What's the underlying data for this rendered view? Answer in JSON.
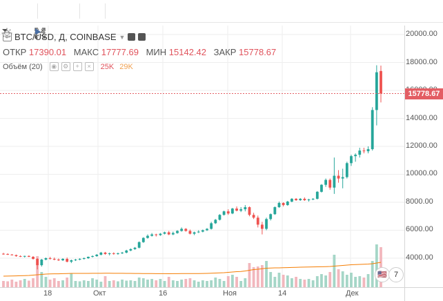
{
  "toolbar": {
    "icons": [
      "bulb-icon",
      "chevron-down-icon",
      "undo-icon",
      "redo-icon",
      "fullscreen-icon",
      "play-icon"
    ]
  },
  "legend": {
    "symbol": "BTC/USD, Д, COINBASE",
    "ohlc": [
      {
        "label": "ОТКР",
        "value": "17390.01"
      },
      {
        "label": "МАКС",
        "value": "17777.69"
      },
      {
        "label": "МИН",
        "value": "15142.42"
      },
      {
        "label": "ЗАКР",
        "value": "15778.67"
      }
    ],
    "volume_label": "Объём (20)",
    "volume_value_1": "25K",
    "volume_value_2": "29K"
  },
  "price_axis": {
    "labels": [
      "20000.00",
      "18000.00",
      "16000.00",
      "14000.00",
      "12000.00",
      "10000.00",
      "8000.00",
      "6000.00",
      "4000.00"
    ],
    "current_price": "15778.67"
  },
  "time_axis": {
    "labels": [
      "18",
      "Окт",
      "16",
      "Ноя",
      "14",
      "Дек"
    ]
  },
  "badge": {
    "count": "7"
  },
  "colors": {
    "up": "#26a69a",
    "down": "#ef5350",
    "up_vol": "#a5d6c7",
    "down_vol": "#f2b7bd",
    "ma": "#f57c00"
  },
  "chart_data": {
    "type": "candlestick",
    "ylim": [
      2000,
      21000
    ],
    "candles": [
      [
        4320,
        4380,
        4250,
        4300
      ],
      [
        4300,
        4350,
        4230,
        4260
      ],
      [
        4260,
        4300,
        4200,
        4220
      ],
      [
        4220,
        4260,
        4100,
        4150
      ],
      [
        4150,
        4200,
        4080,
        4120
      ],
      [
        4120,
        4180,
        4050,
        4160
      ],
      [
        4160,
        4200,
        4080,
        4100
      ],
      [
        4100,
        4150,
        3900,
        3950
      ],
      [
        3950,
        4000,
        3200,
        3500
      ],
      [
        3500,
        3950,
        3400,
        3900
      ],
      [
        3900,
        4050,
        3850,
        4000
      ],
      [
        4000,
        4100,
        3900,
        3950
      ],
      [
        3950,
        4050,
        3850,
        3900
      ],
      [
        3900,
        3980,
        3800,
        3850
      ],
      [
        3850,
        4000,
        3800,
        3950
      ],
      [
        3950,
        4050,
        3700,
        3750
      ],
      [
        3750,
        3900,
        3650,
        3850
      ],
      [
        3850,
        3950,
        3800,
        3900
      ],
      [
        3900,
        4000,
        3850,
        3950
      ],
      [
        3950,
        4050,
        3900,
        4000
      ],
      [
        4000,
        4120,
        3950,
        4100
      ],
      [
        4100,
        4200,
        4050,
        4150
      ],
      [
        4150,
        4300,
        4100,
        4250
      ],
      [
        4250,
        4450,
        4200,
        4400
      ],
      [
        4400,
        4450,
        4250,
        4300
      ],
      [
        4300,
        4400,
        4200,
        4350
      ],
      [
        4350,
        4420,
        4250,
        4300
      ],
      [
        4300,
        4400,
        4250,
        4350
      ],
      [
        4350,
        4450,
        4300,
        4400
      ],
      [
        4400,
        4600,
        4350,
        4550
      ],
      [
        4550,
        4700,
        4500,
        4650
      ],
      [
        4650,
        4800,
        4600,
        4750
      ],
      [
        4750,
        5200,
        4700,
        5150
      ],
      [
        5150,
        5500,
        5100,
        5450
      ],
      [
        5450,
        5700,
        5400,
        5600
      ],
      [
        5600,
        5800,
        5550,
        5700
      ],
      [
        5700,
        5750,
        5550,
        5650
      ],
      [
        5650,
        5800,
        5600,
        5750
      ],
      [
        5750,
        5900,
        5700,
        5850
      ],
      [
        5850,
        5950,
        5650,
        5700
      ],
      [
        5700,
        5900,
        5650,
        5800
      ],
      [
        5800,
        6000,
        5750,
        5950
      ],
      [
        5950,
        6200,
        5900,
        6100
      ],
      [
        6100,
        6150,
        5900,
        5950
      ],
      [
        5950,
        6050,
        5700,
        5750
      ],
      [
        5750,
        5900,
        5650,
        5850
      ],
      [
        5850,
        6000,
        5800,
        5900
      ],
      [
        5900,
        6050,
        5850,
        6000
      ],
      [
        6000,
        6150,
        5950,
        6100
      ],
      [
        6100,
        6600,
        6050,
        6500
      ],
      [
        6500,
        6800,
        6450,
        6750
      ],
      [
        6750,
        7150,
        6700,
        7100
      ],
      [
        7100,
        7400,
        7050,
        7350
      ],
      [
        7350,
        7500,
        7100,
        7200
      ],
      [
        7200,
        7600,
        7150,
        7550
      ],
      [
        7550,
        7700,
        7350,
        7400
      ],
      [
        7400,
        7650,
        7300,
        7500
      ],
      [
        7500,
        7800,
        7350,
        7650
      ],
      [
        7650,
        7700,
        7000,
        7100
      ],
      [
        7100,
        7250,
        6800,
        6900
      ],
      [
        6900,
        7050,
        6200,
        6400
      ],
      [
        6400,
        6600,
        5700,
        6100
      ],
      [
        6100,
        6900,
        6000,
        6800
      ],
      [
        6800,
        7200,
        6700,
        7150
      ],
      [
        7150,
        7700,
        7100,
        7650
      ],
      [
        7650,
        8050,
        7600,
        7950
      ],
      [
        7950,
        8000,
        7700,
        7800
      ],
      [
        7800,
        8100,
        7750,
        8050
      ],
      [
        8050,
        8300,
        8000,
        8250
      ],
      [
        8250,
        8300,
        8100,
        8150
      ],
      [
        8150,
        8300,
        8100,
        8250
      ],
      [
        8250,
        8350,
        8100,
        8150
      ],
      [
        8150,
        8250,
        8050,
        8200
      ],
      [
        8200,
        8300,
        8150,
        8250
      ],
      [
        8250,
        8800,
        8200,
        8750
      ],
      [
        8750,
        9300,
        8700,
        9250
      ],
      [
        9250,
        9700,
        9100,
        9600
      ],
      [
        9600,
        9700,
        8900,
        9050
      ],
      [
        9050,
        11200,
        8600,
        9900
      ],
      [
        9900,
        10300,
        9400,
        9700
      ],
      [
        9700,
        10400,
        9000,
        9800
      ],
      [
        9800,
        10900,
        9700,
        10800
      ],
      [
        10800,
        11400,
        10600,
        11300
      ],
      [
        11300,
        11500,
        10900,
        11400
      ],
      [
        11400,
        11900,
        11200,
        11700
      ],
      [
        11700,
        11900,
        11500,
        11650
      ],
      [
        11650,
        12000,
        11500,
        11800
      ],
      [
        11800,
        14800,
        11700,
        14600
      ],
      [
        14600,
        17800,
        13500,
        17300
      ],
      [
        17390,
        17777.69,
        15142.42,
        15778.67
      ]
    ],
    "volumes": [
      900,
      850,
      1100,
      800,
      1000,
      1200,
      950,
      1300,
      4500,
      2200,
      1500,
      1100,
      1300,
      900,
      1000,
      1400,
      2000,
      900,
      850,
      1000,
      900,
      1300,
      1100,
      800,
      1600,
      900,
      1000,
      850,
      1100,
      950,
      1000,
      900,
      1400,
      1300,
      1100,
      1200,
      1000,
      1200,
      900,
      1500,
      1000,
      900,
      1100,
      1200,
      1300,
      1000,
      800,
      1000,
      900,
      1000,
      1400,
      1200,
      900,
      1600,
      1800,
      1500,
      900,
      1300,
      3500,
      2900,
      3000,
      3200,
      3800,
      2200,
      1500,
      2100,
      1800,
      1700,
      1300,
      1500,
      1200,
      1100,
      1200,
      1000,
      1600,
      1900,
      1700,
      2200,
      4700,
      2600,
      2300,
      1800,
      2100,
      1500,
      1600,
      1400,
      1900,
      3800,
      6200,
      5800
    ],
    "ma_start": 700,
    "ma": [
      700,
      710,
      720,
      740,
      760,
      780,
      800,
      850,
      900,
      950,
      1000,
      1020,
      1040,
      1040,
      1060,
      1080,
      1100,
      1100,
      1100,
      1100,
      1100,
      1110,
      1110,
      1110,
      1120,
      1120,
      1110,
      1110,
      1110,
      1100,
      1100,
      1090,
      1090,
      1080,
      1080,
      1070,
      1060,
      1060,
      1060,
      1050,
      1060,
      1060,
      1070,
      1070,
      1080,
      1080,
      1080,
      1090,
      1100,
      1120,
      1150,
      1180,
      1200,
      1250,
      1300,
      1350,
      1380,
      1450,
      1550,
      1650,
      1700,
      1780,
      1850,
      1880,
      1900,
      1900,
      1920,
      1940,
      1960,
      1980,
      2000,
      2010,
      2020,
      2040,
      2050,
      2060,
      2080,
      2100,
      2150,
      2200,
      2250,
      2300,
      2350,
      2380,
      2400,
      2420,
      2450,
      2500,
      2600,
      2700
    ],
    "volume_max": 10000
  }
}
